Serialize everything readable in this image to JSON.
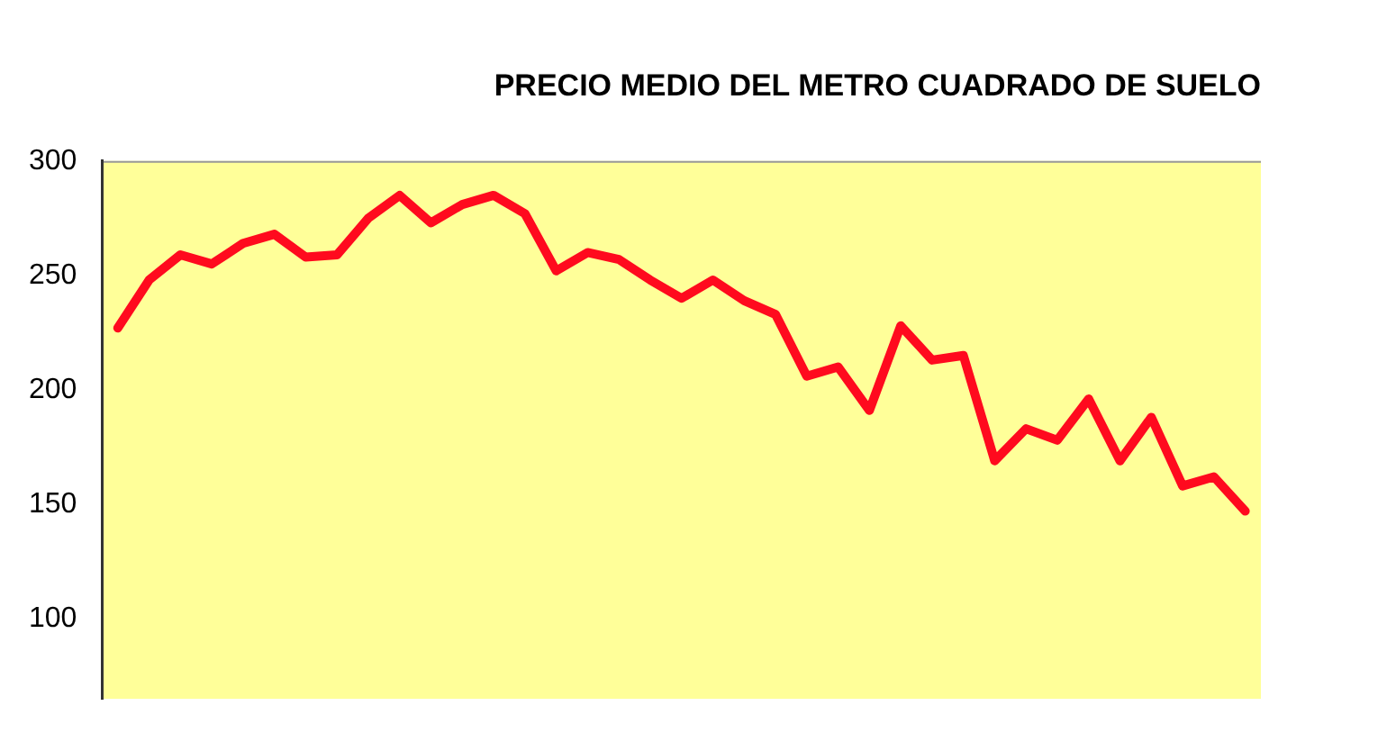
{
  "chart_data": {
    "type": "line",
    "title": "PRECIO MEDIO DEL METRO CUADRADO DE SUELO",
    "categories": [
      null,
      null,
      null,
      null,
      null,
      null,
      null,
      null,
      null,
      null,
      null,
      null,
      null,
      null,
      null,
      null,
      null,
      null,
      null,
      null,
      null,
      null,
      null,
      null,
      null,
      null,
      null,
      null,
      null,
      null,
      null,
      null,
      null,
      null,
      null,
      null,
      null
    ],
    "series": [
      {
        "color": "#ff0a1e",
        "values": [
          227,
          248,
          259,
          255,
          264,
          268,
          258,
          259,
          275,
          285,
          273,
          281,
          285,
          277,
          252,
          260,
          257,
          248,
          240,
          248,
          239,
          233,
          206,
          210,
          191,
          228,
          213,
          215,
          169,
          183,
          178,
          196,
          169,
          188,
          158,
          162,
          147
        ]
      }
    ],
    "ylim": [
      65,
      300
    ],
    "yticks": [
      100,
      150,
      200,
      250,
      300
    ],
    "grid": false,
    "legend": false,
    "marker": "none",
    "line_style": "solid",
    "tick_labels": "y"
  }
}
